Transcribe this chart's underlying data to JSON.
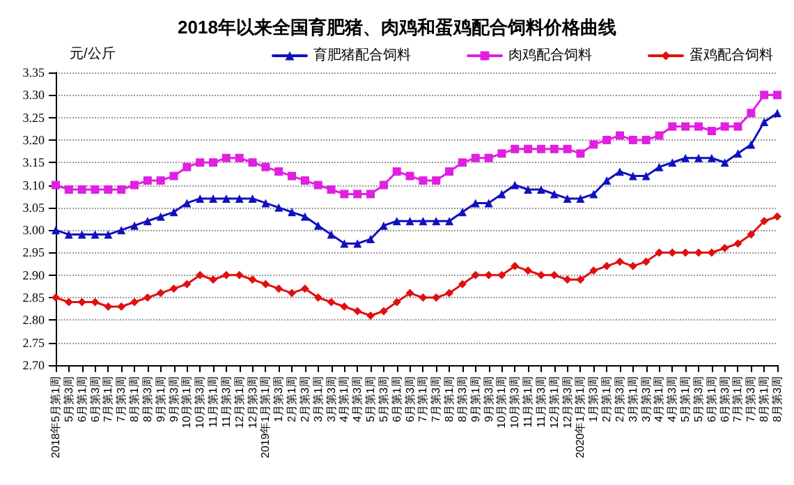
{
  "chart_data": {
    "type": "line",
    "title": "2018年以来全国育肥猪、肉鸡和蛋鸡配合饲料价格曲线",
    "ylabel": "元/公斤",
    "categories": [
      "2018年5月第1周",
      "5月第3周",
      "6月第1周",
      "6月第3周",
      "7月第1周",
      "7月第3周",
      "8月第1周",
      "8月第3周",
      "9月第1周",
      "9月第3周",
      "10月第1周",
      "10月第3周",
      "11月第1周",
      "11月第3周",
      "12月第1周",
      "12月第3周",
      "2019年1月第1周",
      "1月第3周",
      "2月第1周",
      "2月第3周",
      "3月第1周",
      "3月第3周",
      "4月第1周",
      "4月第3周",
      "5月第1周",
      "5月第3周",
      "6月第1周",
      "6月第3周",
      "7月第1周",
      "7月第3周",
      "8月第1周",
      "8月第3周",
      "9月第1周",
      "9月第3周",
      "10月第1周",
      "10月第3周",
      "11月第1周",
      "11月第3周",
      "12月第1周",
      "12月第3周",
      "2020年1月第1周",
      "1月第3周",
      "2月第1周",
      "2月第3周",
      "3月第1周",
      "3月第3周",
      "4月第1周",
      "4月第3周",
      "5月第1周",
      "5月第3周",
      "6月第1周",
      "6月第3周",
      "7月第1周",
      "7月第3周",
      "8月第1周",
      "8月第3周"
    ],
    "series": [
      {
        "name": "育肥猪配合饲料",
        "color": "#1010c0",
        "marker": "triangle",
        "values": [
          3.0,
          2.99,
          2.99,
          2.99,
          2.99,
          3.0,
          3.01,
          3.02,
          3.03,
          3.04,
          3.06,
          3.07,
          3.07,
          3.07,
          3.07,
          3.07,
          3.06,
          3.05,
          3.04,
          3.03,
          3.01,
          2.99,
          2.97,
          2.97,
          2.98,
          3.01,
          3.02,
          3.02,
          3.02,
          3.02,
          3.02,
          3.04,
          3.06,
          3.06,
          3.08,
          3.1,
          3.09,
          3.09,
          3.08,
          3.07,
          3.07,
          3.08,
          3.11,
          3.13,
          3.12,
          3.12,
          3.14,
          3.15,
          3.16,
          3.16,
          3.16,
          3.15,
          3.17,
          3.19,
          3.24,
          3.26
        ]
      },
      {
        "name": "肉鸡配合饲料",
        "color": "#e020e0",
        "marker": "square",
        "values": [
          3.1,
          3.09,
          3.09,
          3.09,
          3.09,
          3.09,
          3.1,
          3.11,
          3.11,
          3.12,
          3.14,
          3.15,
          3.15,
          3.16,
          3.16,
          3.15,
          3.14,
          3.13,
          3.12,
          3.11,
          3.1,
          3.09,
          3.08,
          3.08,
          3.08,
          3.1,
          3.13,
          3.12,
          3.11,
          3.11,
          3.13,
          3.15,
          3.16,
          3.16,
          3.17,
          3.18,
          3.18,
          3.18,
          3.18,
          3.18,
          3.17,
          3.19,
          3.2,
          3.21,
          3.2,
          3.2,
          3.21,
          3.23,
          3.23,
          3.23,
          3.22,
          3.23,
          3.23,
          3.26,
          3.3,
          3.3
        ]
      },
      {
        "name": "蛋鸡配合饲料",
        "color": "#e01010",
        "marker": "diamond",
        "values": [
          2.85,
          2.84,
          2.84,
          2.84,
          2.83,
          2.83,
          2.84,
          2.85,
          2.86,
          2.87,
          2.88,
          2.9,
          2.89,
          2.9,
          2.9,
          2.89,
          2.88,
          2.87,
          2.86,
          2.87,
          2.85,
          2.84,
          2.83,
          2.82,
          2.81,
          2.82,
          2.84,
          2.86,
          2.85,
          2.85,
          2.86,
          2.88,
          2.9,
          2.9,
          2.9,
          2.92,
          2.91,
          2.9,
          2.9,
          2.89,
          2.89,
          2.91,
          2.92,
          2.93,
          2.92,
          2.93,
          2.95,
          2.95,
          2.95,
          2.95,
          2.95,
          2.96,
          2.97,
          2.99,
          3.02,
          3.03
        ]
      }
    ],
    "ylim": [
      2.7,
      3.35
    ],
    "yticks": [
      {
        "value": 2.7,
        "label": "2.70"
      },
      {
        "value": 2.75,
        "label": "2.75"
      },
      {
        "value": 2.8,
        "label": "2.80"
      },
      {
        "value": 2.85,
        "label": "2.85"
      },
      {
        "value": 2.9,
        "label": "2.90"
      },
      {
        "value": 2.95,
        "label": "2.95"
      },
      {
        "value": 3.0,
        "label": "3.00"
      },
      {
        "value": 3.05,
        "label": "3.05"
      },
      {
        "value": 3.1,
        "label": "3.10"
      },
      {
        "value": 3.15,
        "label": "3.15"
      },
      {
        "value": 3.2,
        "label": "3.20"
      },
      {
        "value": 3.25,
        "label": "3.25"
      },
      {
        "value": 3.3,
        "label": "3.30"
      },
      {
        "value": 3.35,
        "label": "3.35"
      }
    ],
    "grid": "y",
    "legend": "top right",
    "line_style": "solid"
  }
}
